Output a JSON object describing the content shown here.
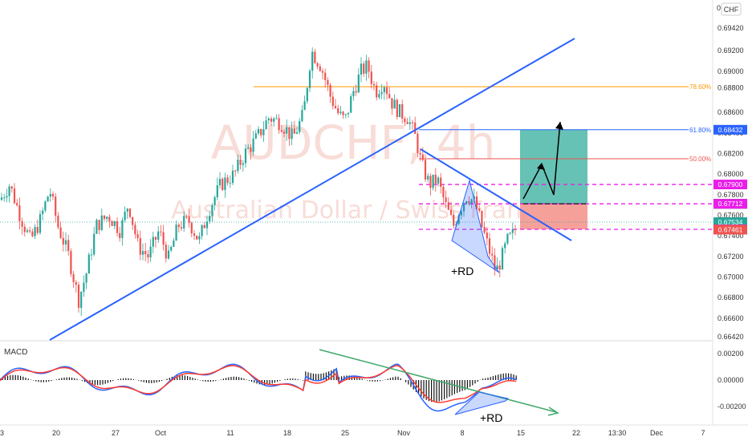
{
  "header": {
    "currency_label": "CHF",
    "corner_label": "0."
  },
  "watermark": {
    "symbol": "AUDCHF, 4h",
    "description": "Australian Dollar / Swiss Franc"
  },
  "colors": {
    "up": "#26a69a",
    "down": "#ef5350",
    "trendline": "#2962ff",
    "fib_786": "#ff9800",
    "fib_618": "#2962ff",
    "fib_50": "#ef5350",
    "magenta": "#e91ee9",
    "target_zone": "#66c2b4",
    "stop_zone": "#f6a09a",
    "macd_line": "#2962ff",
    "signal_line": "#ff3b30",
    "macd_trend": "#3fa86a"
  },
  "chart_data": [
    {
      "type": "candlestick",
      "title": "AUDCHF, 4h",
      "ylim": [
        0.6635,
        0.6955
      ],
      "y_ticks": [
        0.6942,
        0.692,
        0.69,
        0.6884,
        0.686,
        0.684,
        0.682,
        0.68,
        0.678,
        0.676,
        0.674,
        0.672,
        0.67,
        0.668,
        0.666,
        0.6642
      ],
      "y_tick_labels": [
        "0.69420",
        "0.69200",
        "0.69000",
        "0.68800",
        "0.68600",
        "0.68400",
        "0.68200",
        "0.68000",
        "0.67800",
        "0.67600",
        "0.67400",
        "0.67200",
        "0.67000",
        "0.66800",
        "0.66600",
        "0.66420"
      ],
      "x_tick_labels": [
        "3",
        "20",
        "27",
        "Oct",
        "11",
        "18",
        "25",
        "Nov",
        "8",
        "15",
        "22",
        "13:30",
        "Dec",
        "7"
      ],
      "price_path": [
        [
          0,
          0.6775
        ],
        [
          12,
          0.679
        ],
        [
          25,
          0.676
        ],
        [
          38,
          0.6735
        ],
        [
          50,
          0.6755
        ],
        [
          62,
          0.6785
        ],
        [
          72,
          0.675
        ],
        [
          85,
          0.6722
        ],
        [
          98,
          0.6678
        ],
        [
          108,
          0.6705
        ],
        [
          120,
          0.675
        ],
        [
          135,
          0.676
        ],
        [
          150,
          0.6745
        ],
        [
          160,
          0.6772
        ],
        [
          172,
          0.673
        ],
        [
          185,
          0.672
        ],
        [
          198,
          0.6745
        ],
        [
          210,
          0.6718
        ],
        [
          222,
          0.675
        ],
        [
          235,
          0.6755
        ],
        [
          248,
          0.6735
        ],
        [
          260,
          0.6765
        ],
        [
          275,
          0.679
        ],
        [
          292,
          0.68
        ],
        [
          305,
          0.682
        ],
        [
          320,
          0.6835
        ],
        [
          335,
          0.6855
        ],
        [
          350,
          0.685
        ],
        [
          365,
          0.6835
        ],
        [
          378,
          0.6858
        ],
        [
          388,
          0.692
        ],
        [
          400,
          0.6905
        ],
        [
          412,
          0.6875
        ],
        [
          422,
          0.6858
        ],
        [
          430,
          0.6852
        ],
        [
          440,
          0.688
        ],
        [
          450,
          0.69
        ],
        [
          458,
          0.6905
        ],
        [
          468,
          0.688
        ],
        [
          478,
          0.689
        ],
        [
          488,
          0.687
        ],
        [
          498,
          0.686
        ],
        [
          508,
          0.6855
        ],
        [
          518,
          0.6835
        ],
        [
          525,
          0.681
        ],
        [
          535,
          0.679
        ],
        [
          545,
          0.6795
        ],
        [
          555,
          0.677
        ],
        [
          565,
          0.675
        ],
        [
          572,
          0.6765
        ],
        [
          582,
          0.678
        ],
        [
          592,
          0.6772
        ],
        [
          600,
          0.675
        ],
        [
          610,
          0.6725
        ],
        [
          618,
          0.6705
        ],
        [
          625,
          0.6718
        ],
        [
          632,
          0.6735
        ],
        [
          640,
          0.6742
        ],
        [
          645,
          0.6753
        ]
      ],
      "fibonacci": [
        {
          "level": "78.60%",
          "price": 0.6885
        },
        {
          "level": "61.80%",
          "price": 0.68432
        },
        {
          "level": "50.00%",
          "price": 0.6815
        }
      ],
      "horizontal_lines": [
        0.679,
        0.67712,
        0.67464
      ],
      "position": {
        "entry": 0.67712,
        "target": 0.68432,
        "stop": 0.67464
      },
      "annotations": [
        {
          "text": "+RD"
        }
      ],
      "price_labels": [
        {
          "value": "0.68432",
          "bg": "#2962ff"
        },
        {
          "value": "0.67900",
          "bg": "#e91ee9"
        },
        {
          "value": "0.67712",
          "bg": "#000000"
        },
        {
          "value": "0.67712",
          "bg": "#e91ee9"
        },
        {
          "value": "0.67534",
          "bg": "#26a69a"
        },
        {
          "value": "0.67464",
          "bg": "#e91ee9"
        },
        {
          "value": "0.67461",
          "bg": "#ef5350"
        }
      ]
    },
    {
      "type": "line",
      "title": "MACD",
      "ylim": [
        -0.003,
        0.0026
      ],
      "y_ticks": [
        0.002,
        0.0,
        -0.002
      ],
      "y_tick_labels": [
        "0.00200",
        "0.00000",
        "-0.00200"
      ],
      "annotations": [
        {
          "text": "+RD"
        }
      ]
    }
  ]
}
